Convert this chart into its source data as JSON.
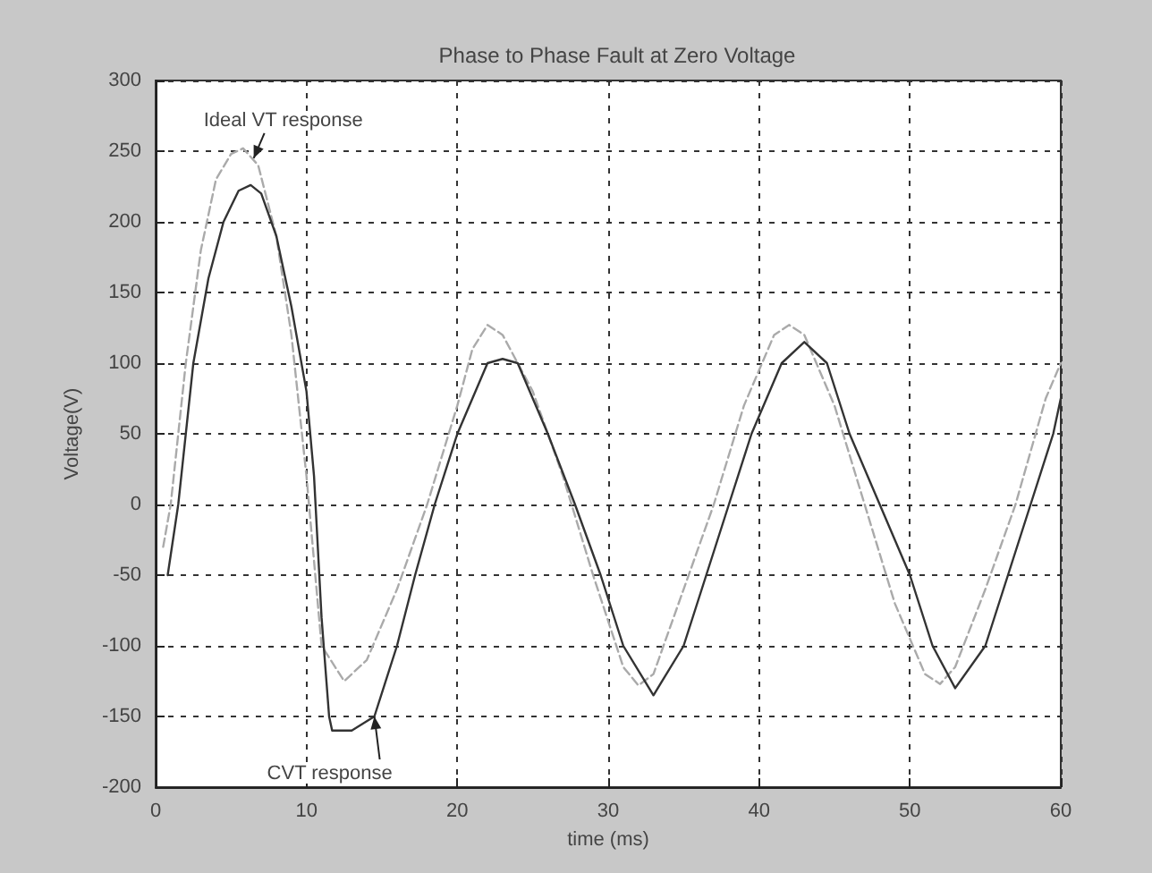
{
  "chart_data": {
    "type": "line",
    "title": "Phase to Phase Fault at Zero Voltage",
    "xlabel": "time (ms)",
    "ylabel": "Voltage(V)",
    "xlim": [
      0,
      60
    ],
    "xticks": [
      0,
      10,
      20,
      30,
      40,
      50,
      60
    ],
    "ylim": [
      -200,
      300
    ],
    "yticks": [
      -200,
      -150,
      -100,
      -50,
      0,
      50,
      100,
      150,
      200,
      250,
      300
    ],
    "grid": true,
    "marker": "none",
    "series": [
      {
        "color": "#aaaaaa",
        "line_style": "dashed",
        "x": [
          0.5,
          1,
          2,
          3,
          4,
          5,
          5.8,
          6.8,
          8,
          9,
          10,
          11,
          12.5,
          14,
          16,
          18,
          20,
          21,
          22,
          23,
          25,
          27,
          29,
          31,
          32,
          33,
          35,
          37,
          39,
          41,
          42,
          43,
          45,
          47,
          49,
          51,
          52,
          53,
          55,
          57,
          59,
          60
        ],
        "values": [
          -30,
          0,
          100,
          180,
          230,
          248,
          252,
          240,
          190,
          120,
          20,
          -100,
          -125,
          -110,
          -60,
          0,
          70,
          110,
          127,
          120,
          80,
          20,
          -50,
          -115,
          -128,
          -120,
          -60,
          0,
          70,
          120,
          127,
          120,
          70,
          0,
          -70,
          -120,
          -127,
          -115,
          -60,
          0,
          75,
          100
        ]
      },
      {
        "color": "#333333",
        "line_style": "solid",
        "x": [
          0.8,
          1.5,
          2.5,
          3.5,
          4.5,
          5.5,
          6.3,
          7,
          8,
          9,
          10,
          10.5,
          11,
          11.5,
          11.7,
          13,
          14.5,
          16,
          17.2,
          18.5,
          20,
          22,
          23,
          24,
          26,
          27.8,
          29.5,
          31,
          33,
          35,
          36.5,
          38,
          39.5,
          41.5,
          43,
          44.5,
          46,
          48,
          50,
          51.5,
          53,
          55,
          56.5,
          58,
          59.5,
          60
        ],
        "values": [
          -50,
          0,
          100,
          160,
          200,
          222,
          226,
          220,
          190,
          140,
          80,
          20,
          -80,
          -150,
          -160,
          -160,
          -150,
          -100,
          -50,
          0,
          50,
          100,
          103,
          100,
          50,
          0,
          -50,
          -100,
          -135,
          -100,
          -50,
          0,
          50,
          100,
          115,
          100,
          50,
          0,
          -50,
          -100,
          -130,
          -100,
          -50,
          0,
          50,
          75
        ]
      }
    ],
    "annotations": [
      {
        "text": "Ideal VT response",
        "x": 6.5,
        "y": 245
      },
      {
        "text": "CVT response",
        "x": 14.5,
        "y": -150
      }
    ]
  }
}
